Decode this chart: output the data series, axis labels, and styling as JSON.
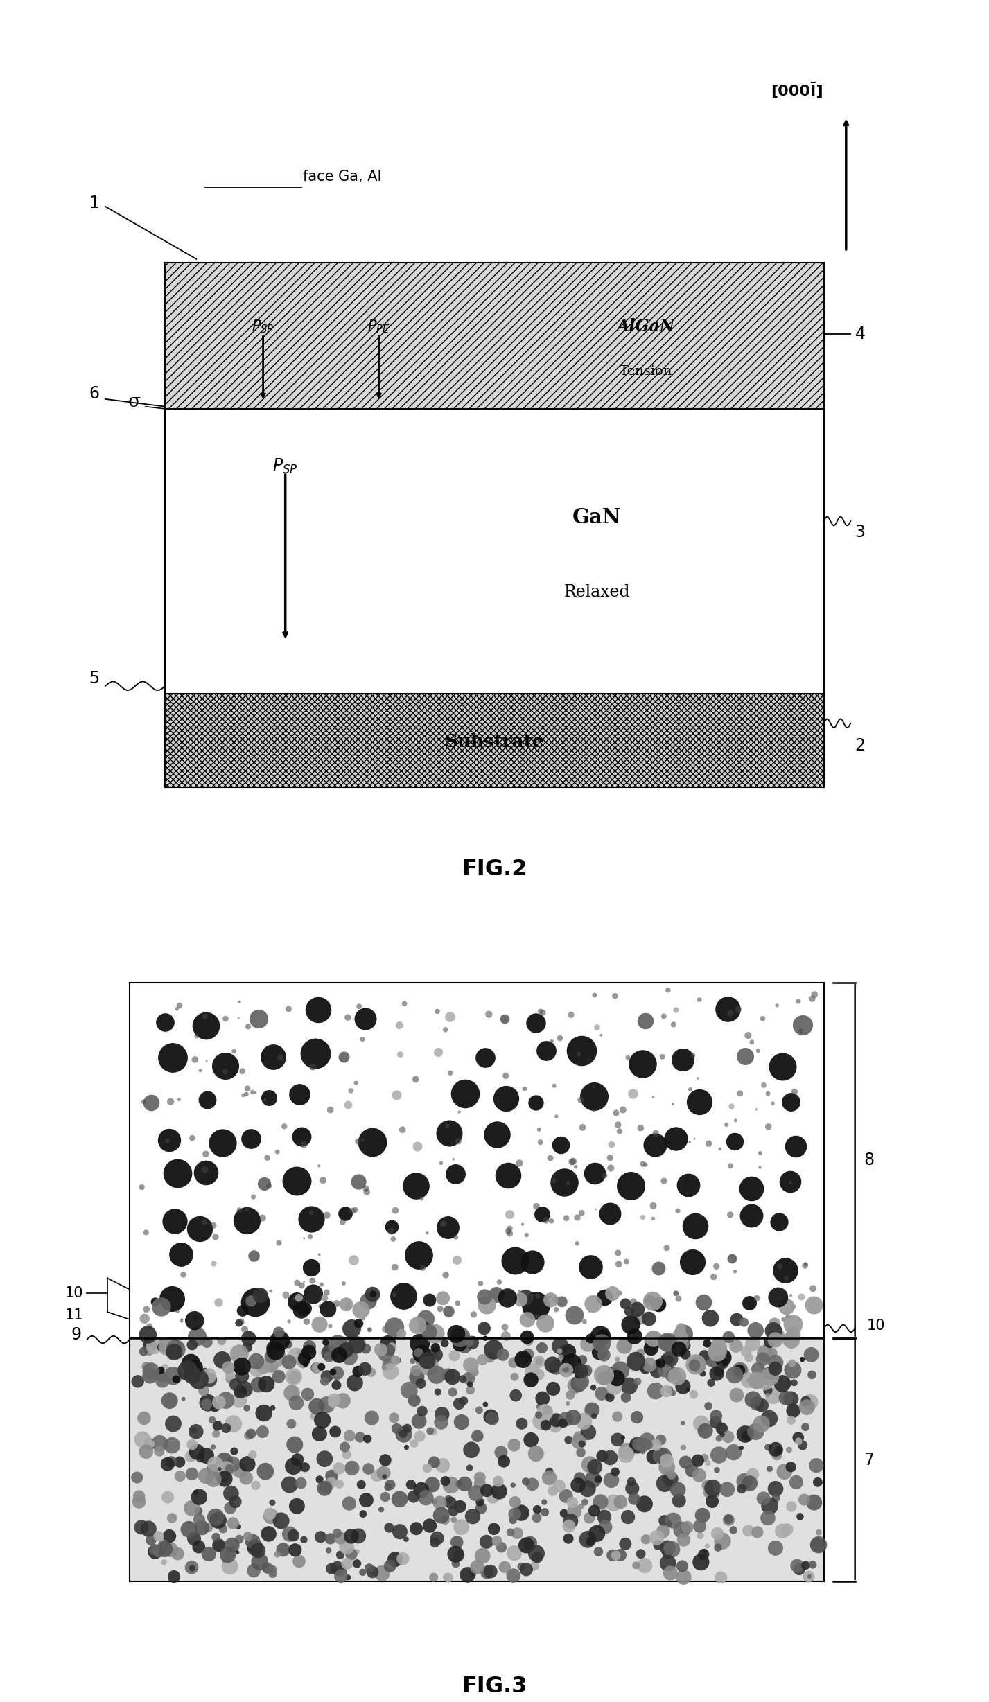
{
  "fig_width": 14.27,
  "fig_height": 24.56,
  "bg_color": "#ffffff",
  "fig2_title": "FIG.2",
  "fig3_title": "FIG.3",
  "crystal_label": "[000Ī]",
  "sigma_label": "σ"
}
